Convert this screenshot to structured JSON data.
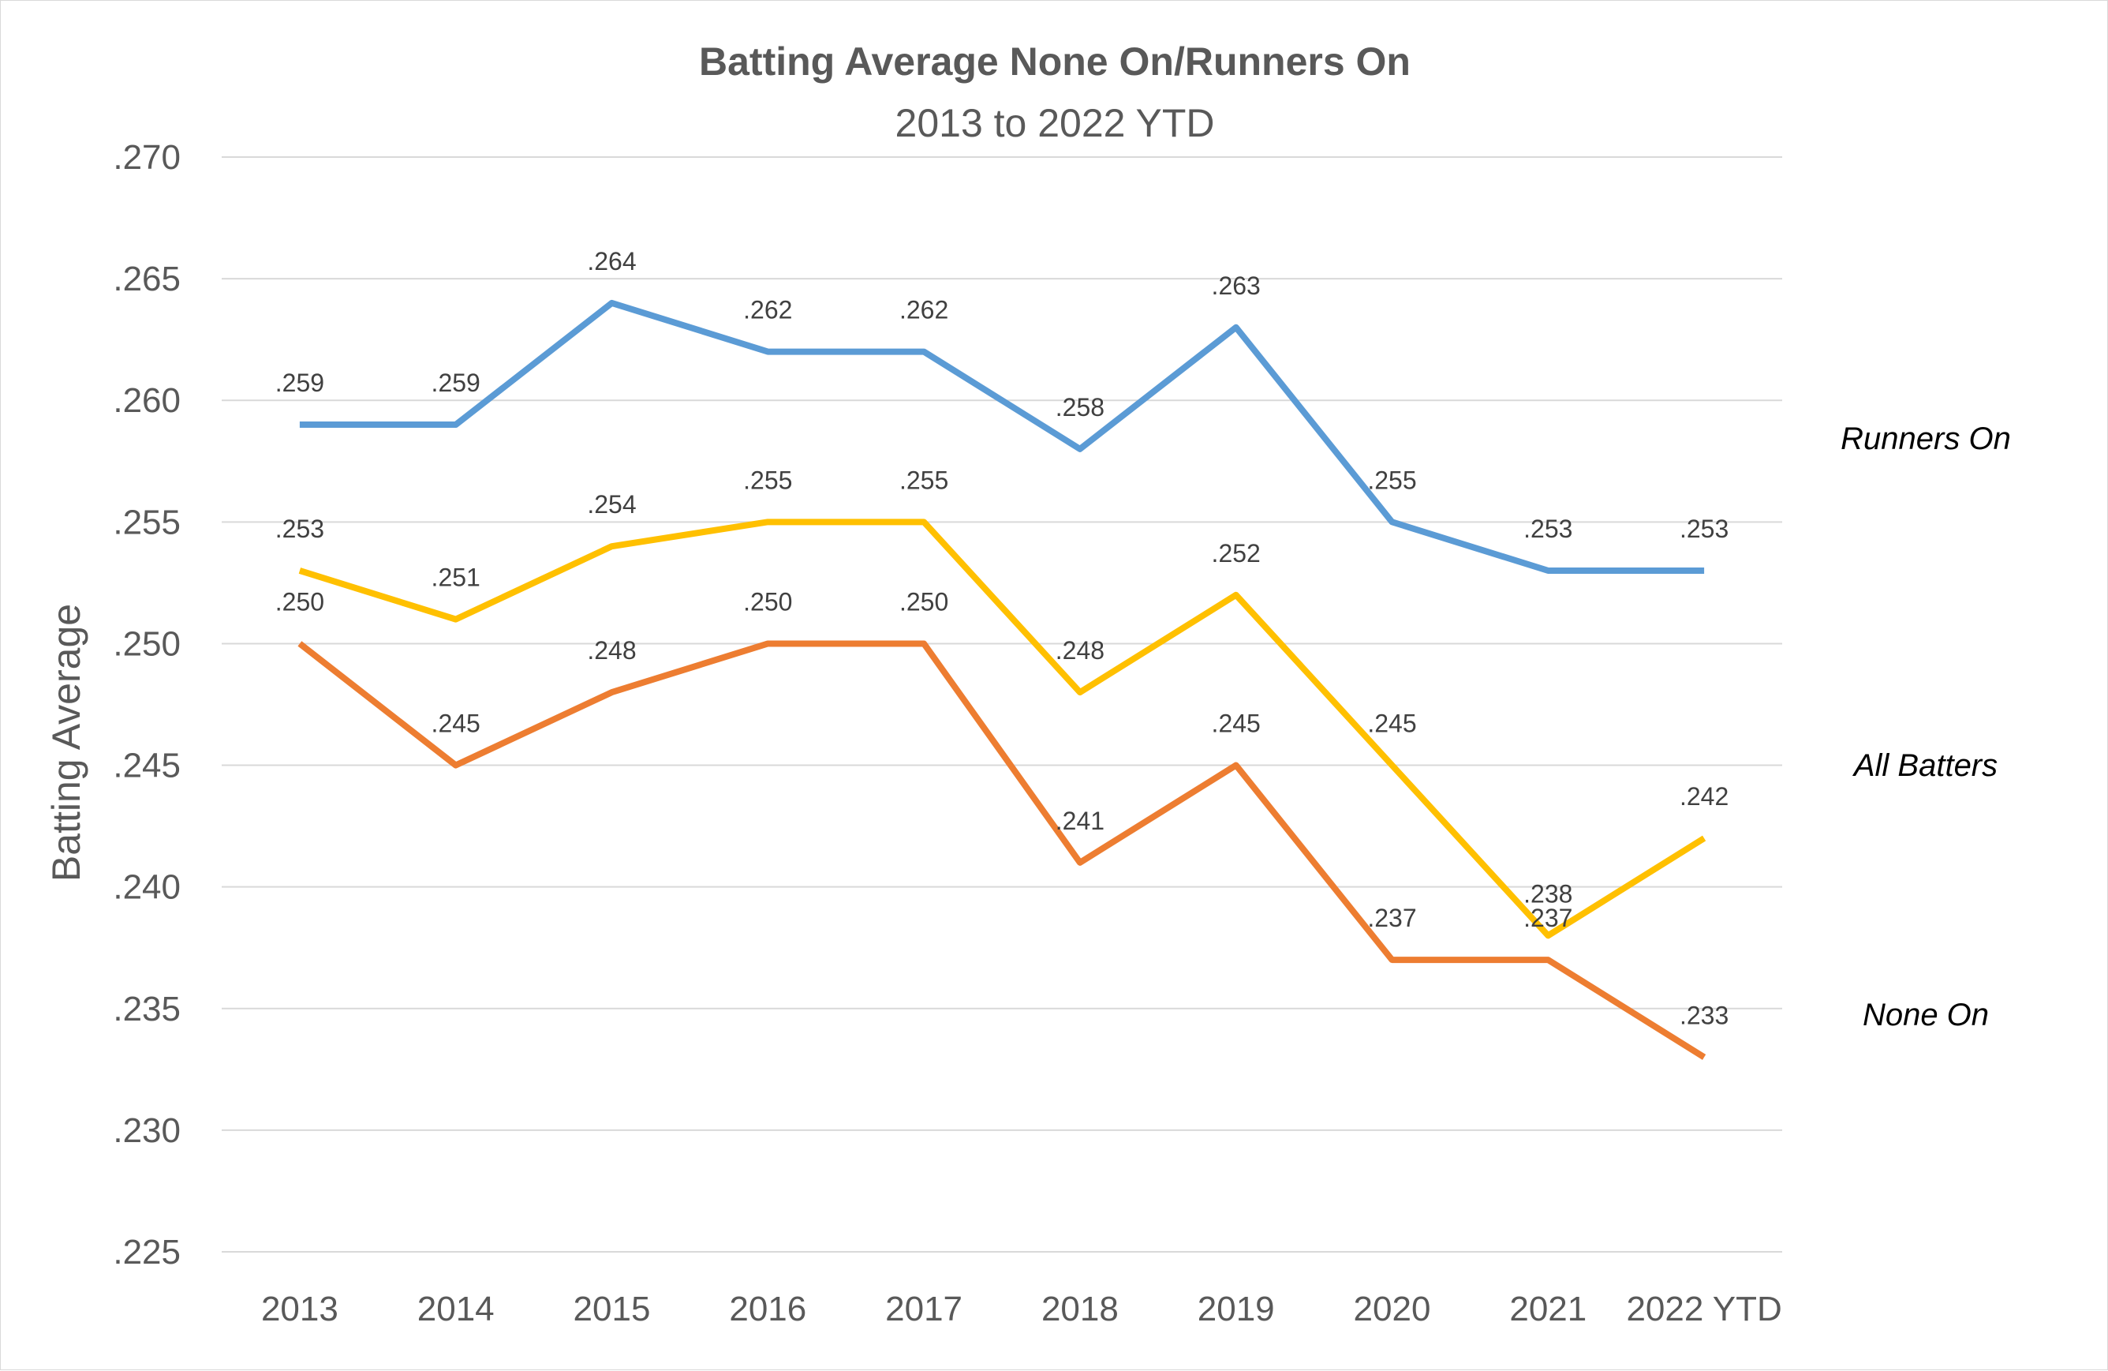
{
  "chart_data": {
    "type": "line",
    "title": "Batting Average None On/Runners On",
    "subtitle": "2013 to 2022 YTD",
    "xlabel": "",
    "ylabel": "Batting Average",
    "categories": [
      "2013",
      "2014",
      "2015",
      "2016",
      "2017",
      "2018",
      "2019",
      "2020",
      "2021",
      "2022 YTD"
    ],
    "ylim": [
      0.225,
      0.27
    ],
    "yticks": [
      0.225,
      0.23,
      0.235,
      0.24,
      0.245,
      0.25,
      0.255,
      0.26,
      0.265,
      0.27
    ],
    "ytick_labels": [
      ".225",
      ".230",
      ".235",
      ".240",
      ".245",
      ".250",
      ".255",
      ".260",
      ".265",
      ".270"
    ],
    "grid": true,
    "legend": "none",
    "series": [
      {
        "name": "Runners On",
        "color": "#5b9bd5",
        "values": [
          0.259,
          0.259,
          0.264,
          0.262,
          0.262,
          0.258,
          0.263,
          0.255,
          0.253,
          0.253
        ],
        "labels": [
          ".259",
          ".259",
          ".264",
          ".262",
          ".262",
          ".258",
          ".263",
          ".255",
          ".253",
          ".253"
        ]
      },
      {
        "name": "All Batters",
        "color": "#ffc000",
        "values": [
          0.253,
          0.251,
          0.254,
          0.255,
          0.255,
          0.248,
          0.252,
          0.245,
          0.238,
          0.242
        ],
        "labels": [
          ".253",
          ".251",
          ".254",
          ".255",
          ".255",
          ".248",
          ".252",
          ".245",
          ".238",
          ".242"
        ]
      },
      {
        "name": "None On",
        "color": "#ed7d31",
        "values": [
          0.25,
          0.245,
          0.248,
          0.25,
          0.25,
          0.241,
          0.245,
          0.237,
          0.237,
          0.233
        ],
        "labels": [
          ".250",
          ".245",
          ".248",
          ".250",
          ".250",
          ".241",
          ".245",
          ".237",
          ".237",
          ".233"
        ]
      }
    ]
  }
}
